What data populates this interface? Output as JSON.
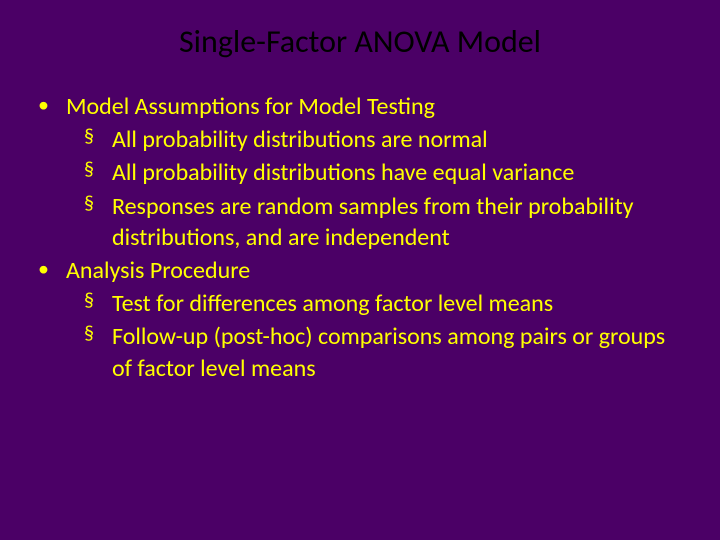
{
  "colors": {
    "background": "#4b0066",
    "text": "#ffff00",
    "title": "#000000"
  },
  "typography": {
    "title_fontsize": 32,
    "body_fontsize": 24,
    "font_family": "Calibri"
  },
  "slide": {
    "title": "Single-Factor ANOVA Model",
    "bullets": [
      {
        "text": "Model Assumptions for Model Testing",
        "marker": "•",
        "sub": [
          {
            "marker": "§",
            "text": "All probability distributions are normal"
          },
          {
            "marker": "§",
            "text": "All probability distributions have equal variance"
          },
          {
            "marker": "§",
            "text": "Responses are random samples from their probability distributions, and are independent"
          }
        ]
      },
      {
        "text": "Analysis Procedure",
        "marker": "•",
        "sub": [
          {
            "marker": "§",
            "text": "Test for differences among factor level means"
          },
          {
            "marker": "§",
            "text": "Follow-up (post-hoc) comparisons among pairs or groups of factor level means"
          }
        ]
      }
    ]
  }
}
